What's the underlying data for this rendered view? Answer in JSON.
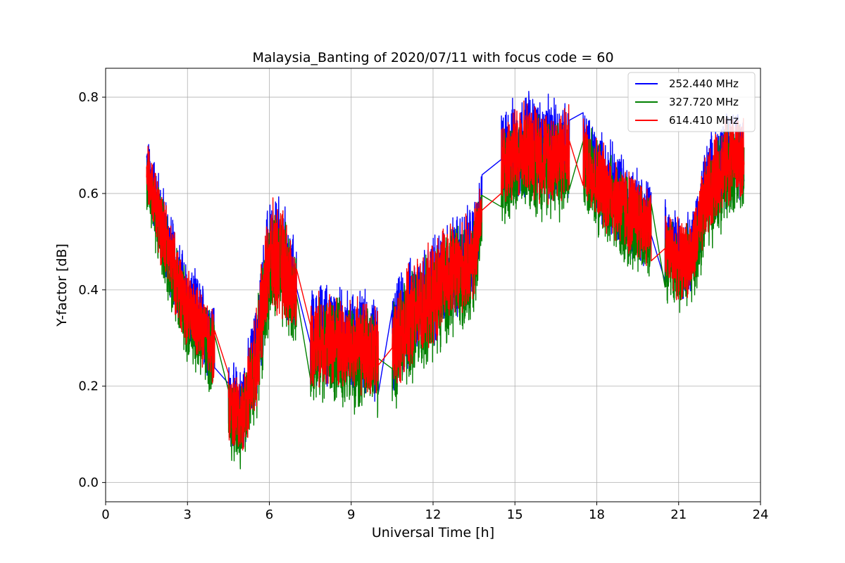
{
  "chart_data": {
    "type": "line",
    "title": "Malaysia_Banting of 2020/07/11 with focus code = 60",
    "xlabel": "Universal Time [h]",
    "ylabel": "Y-factor [dB]",
    "xlim": [
      0,
      24
    ],
    "ylim": [
      -0.04,
      0.86
    ],
    "xticks": [
      0,
      3,
      6,
      9,
      12,
      15,
      18,
      21,
      24
    ],
    "yticks": [
      0.0,
      0.2,
      0.4,
      0.6,
      0.8
    ],
    "ytick_labels": [
      "0.0",
      "0.2",
      "0.4",
      "0.6",
      "0.8"
    ],
    "grid": true,
    "legend_position": "top-right",
    "x": [
      1.5,
      2.0,
      2.5,
      3.0,
      3.5,
      4.0,
      4.5,
      5.0,
      5.5,
      6.0,
      6.5,
      7.0,
      7.5,
      8.0,
      8.5,
      9.0,
      9.5,
      10.0,
      10.5,
      11.0,
      11.5,
      12.0,
      12.5,
      13.0,
      13.5,
      13.8,
      14.5,
      15.0,
      15.5,
      16.0,
      16.5,
      17.0,
      17.5,
      18.0,
      18.5,
      19.0,
      19.5,
      20.0,
      20.5,
      21.0,
      21.5,
      22.0,
      22.5,
      23.0,
      23.4
    ],
    "series": [
      {
        "name": "252.440 MHz",
        "color": "#0000ff",
        "mean": [
          0.66,
          0.55,
          0.45,
          0.37,
          0.33,
          0.29,
          0.16,
          0.15,
          0.26,
          0.48,
          0.46,
          0.4,
          0.3,
          0.31,
          0.3,
          0.29,
          0.29,
          0.27,
          0.29,
          0.34,
          0.37,
          0.4,
          0.44,
          0.45,
          0.48,
          0.58,
          0.68,
          0.69,
          0.71,
          0.69,
          0.69,
          0.7,
          0.69,
          0.64,
          0.61,
          0.58,
          0.56,
          0.54,
          0.5,
          0.47,
          0.48,
          0.6,
          0.66,
          0.69,
          0.68
        ],
        "amplitude": [
          0.07,
          0.1,
          0.1,
          0.1,
          0.1,
          0.1,
          0.1,
          0.1,
          0.12,
          0.14,
          0.14,
          0.1,
          0.11,
          0.12,
          0.12,
          0.12,
          0.12,
          0.12,
          0.12,
          0.13,
          0.13,
          0.13,
          0.13,
          0.12,
          0.12,
          0.08,
          0.11,
          0.12,
          0.12,
          0.12,
          0.12,
          0.12,
          0.1,
          0.11,
          0.11,
          0.11,
          0.11,
          0.1,
          0.1,
          0.1,
          0.1,
          0.11,
          0.11,
          0.11,
          0.1
        ]
      },
      {
        "name": "327.720 MHz",
        "color": "#008000",
        "mean": [
          0.63,
          0.52,
          0.42,
          0.34,
          0.3,
          0.26,
          0.13,
          0.12,
          0.23,
          0.45,
          0.43,
          0.37,
          0.27,
          0.28,
          0.27,
          0.26,
          0.26,
          0.24,
          0.26,
          0.31,
          0.34,
          0.37,
          0.41,
          0.42,
          0.45,
          0.55,
          0.64,
          0.65,
          0.67,
          0.65,
          0.65,
          0.66,
          0.66,
          0.61,
          0.58,
          0.55,
          0.53,
          0.51,
          0.47,
          0.44,
          0.45,
          0.57,
          0.62,
          0.65,
          0.64
        ],
        "amplitude": [
          0.07,
          0.1,
          0.1,
          0.1,
          0.1,
          0.1,
          0.1,
          0.1,
          0.12,
          0.14,
          0.14,
          0.1,
          0.11,
          0.12,
          0.12,
          0.12,
          0.12,
          0.12,
          0.12,
          0.13,
          0.13,
          0.13,
          0.13,
          0.12,
          0.12,
          0.08,
          0.11,
          0.12,
          0.12,
          0.12,
          0.12,
          0.12,
          0.1,
          0.11,
          0.11,
          0.11,
          0.11,
          0.1,
          0.1,
          0.1,
          0.1,
          0.11,
          0.11,
          0.11,
          0.1
        ]
      },
      {
        "name": "614.410 MHz",
        "color": "#ff0000",
        "mean": [
          0.65,
          0.54,
          0.44,
          0.36,
          0.32,
          0.28,
          0.15,
          0.14,
          0.25,
          0.47,
          0.45,
          0.39,
          0.29,
          0.3,
          0.29,
          0.28,
          0.28,
          0.26,
          0.28,
          0.33,
          0.36,
          0.39,
          0.43,
          0.44,
          0.47,
          0.57,
          0.67,
          0.68,
          0.7,
          0.68,
          0.68,
          0.69,
          0.68,
          0.63,
          0.6,
          0.57,
          0.55,
          0.53,
          0.49,
          0.46,
          0.47,
          0.59,
          0.65,
          0.68,
          0.67
        ],
        "amplitude": [
          0.06,
          0.09,
          0.09,
          0.09,
          0.09,
          0.09,
          0.09,
          0.09,
          0.11,
          0.13,
          0.13,
          0.09,
          0.1,
          0.11,
          0.11,
          0.11,
          0.11,
          0.11,
          0.11,
          0.12,
          0.12,
          0.12,
          0.12,
          0.11,
          0.11,
          0.07,
          0.1,
          0.11,
          0.11,
          0.11,
          0.11,
          0.11,
          0.09,
          0.1,
          0.1,
          0.1,
          0.1,
          0.09,
          0.09,
          0.09,
          0.09,
          0.1,
          0.1,
          0.1,
          0.09
        ]
      }
    ],
    "segments": [
      [
        1.5,
        4.0
      ],
      [
        4.5,
        7.0
      ],
      [
        7.5,
        10.0
      ],
      [
        10.5,
        13.8
      ],
      [
        14.5,
        17.0
      ],
      [
        17.5,
        20.0
      ],
      [
        20.5,
        23.4
      ]
    ]
  }
}
